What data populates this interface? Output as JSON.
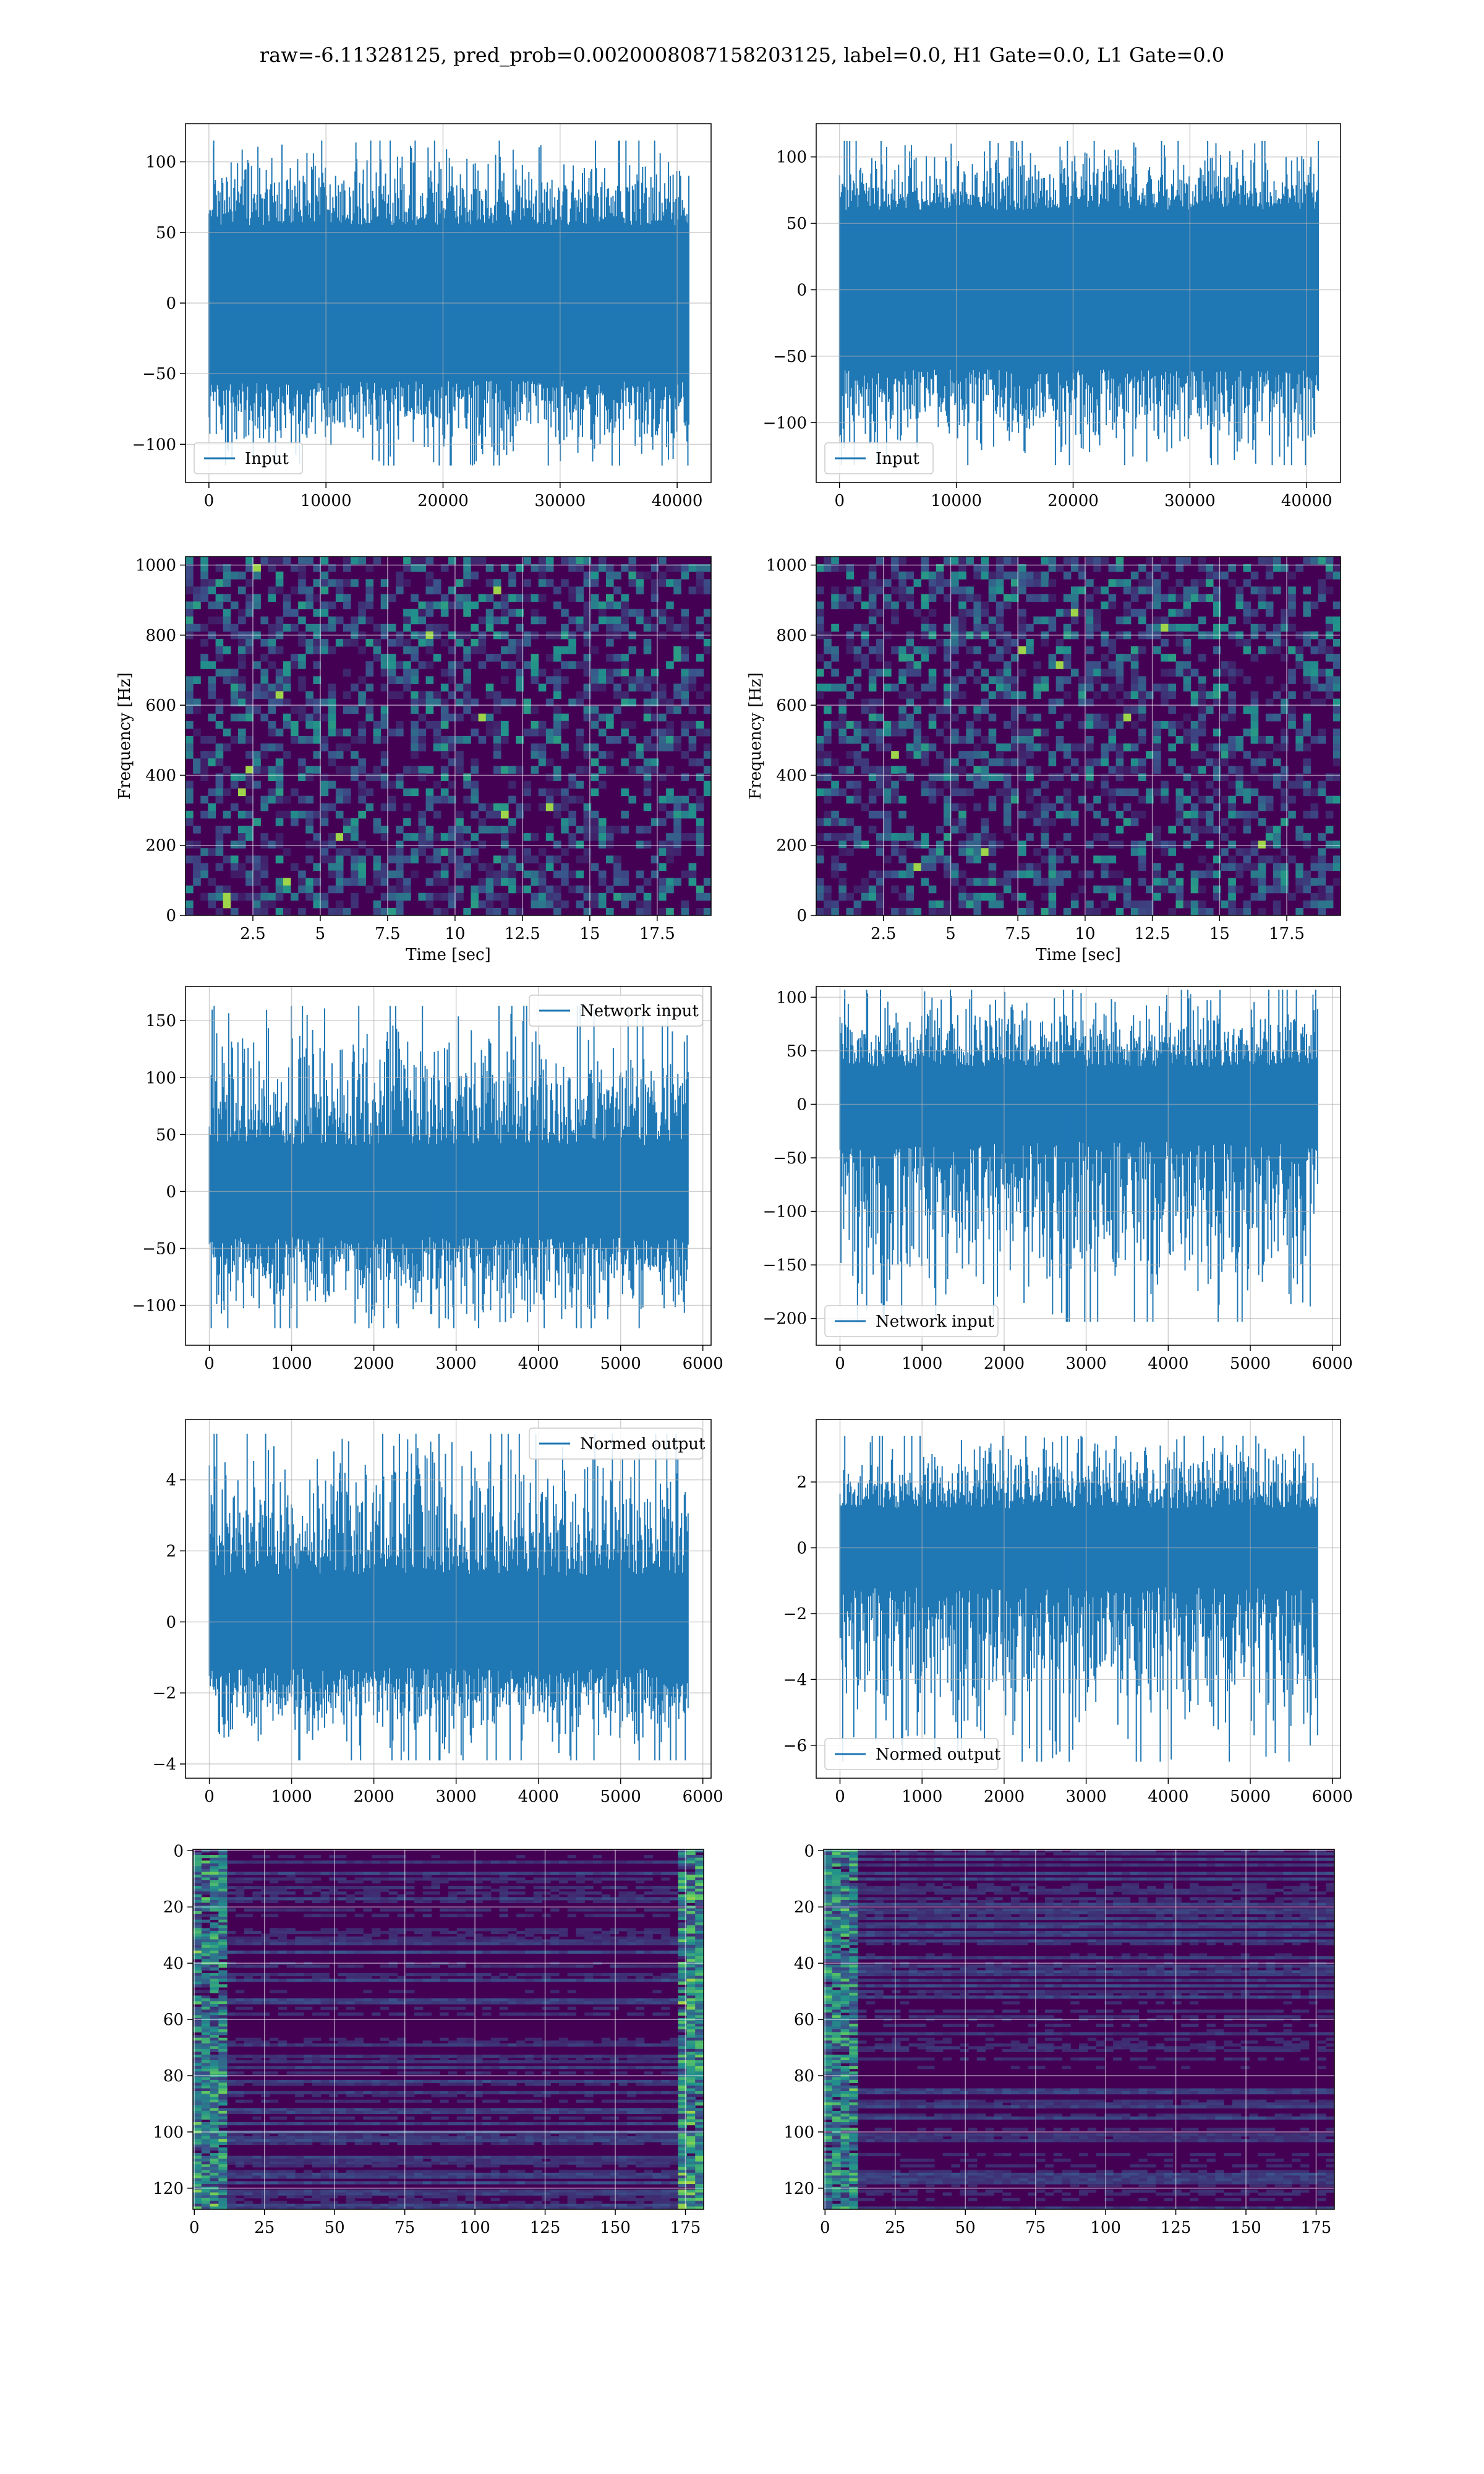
{
  "suptitle": "raw=-6.11328125, pred_prob=0.0020008087158203125, label=0.0, H1 Gate=0.0, L1 Gate=0.0",
  "colors": {
    "series": "#1f77b4",
    "grid": "#b0b0b0",
    "viridis_low": "#440154",
    "viridis_high": "#fde725"
  },
  "chart_data": [
    {
      "id": "r1c1",
      "type": "line",
      "legend": "Input",
      "legend_loc": "lower left",
      "grid": true,
      "xlim": [
        -2000,
        42900
      ],
      "ylim": [
        -127,
        127
      ],
      "xticks": [
        0,
        10000,
        20000,
        30000,
        40000
      ],
      "yticks": [
        -100,
        -50,
        0,
        50,
        100
      ],
      "x": [
        0,
        41000
      ],
      "band": [
        -55,
        55
      ],
      "peaks": [
        -115,
        115
      ]
    },
    {
      "id": "r1c2",
      "type": "line",
      "legend": "Input",
      "legend_loc": "lower left",
      "grid": true,
      "xlim": [
        -2000,
        42900
      ],
      "ylim": [
        -145,
        125
      ],
      "xticks": [
        0,
        10000,
        20000,
        30000,
        40000
      ],
      "yticks": [
        -100,
        -50,
        0,
        50,
        100
      ],
      "x": [
        0,
        41000
      ],
      "band": [
        -60,
        60
      ],
      "peaks": [
        -132,
        112
      ]
    },
    {
      "id": "r2c1",
      "type": "heatmap",
      "grid": true,
      "xlabel": "Time [sec]",
      "ylabel": "Frequency [Hz]",
      "xlim": [
        0,
        19.5
      ],
      "ylim": [
        0,
        1024
      ],
      "xticks": [
        2.5,
        5.0,
        7.5,
        10.0,
        12.5,
        15.0,
        17.5
      ],
      "yticks": [
        0,
        200,
        400,
        600,
        800,
        1000
      ]
    },
    {
      "id": "r2c2",
      "type": "heatmap",
      "grid": true,
      "xlabel": "Time [sec]",
      "ylabel": "Frequency [Hz]",
      "xlim": [
        0,
        19.5
      ],
      "ylim": [
        0,
        1024
      ],
      "xticks": [
        2.5,
        5.0,
        7.5,
        10.0,
        12.5,
        15.0,
        17.5
      ],
      "yticks": [
        0,
        200,
        400,
        600,
        800,
        1000
      ]
    },
    {
      "id": "r3c1",
      "type": "line",
      "legend": "Network input",
      "legend_loc": "upper right",
      "grid": true,
      "xlim": [
        -290,
        6100
      ],
      "ylim": [
        -135,
        180
      ],
      "xticks": [
        0,
        1000,
        2000,
        3000,
        4000,
        5000,
        6000
      ],
      "yticks": [
        -100,
        -50,
        0,
        50,
        100,
        150
      ],
      "x": [
        0,
        5820
      ],
      "band": [
        -40,
        40
      ],
      "peaks": [
        -120,
        163
      ]
    },
    {
      "id": "r3c2",
      "type": "line",
      "legend": "Network input",
      "legend_loc": "lower left",
      "grid": true,
      "xlim": [
        -290,
        6100
      ],
      "ylim": [
        -225,
        110
      ],
      "xticks": [
        0,
        1000,
        2000,
        3000,
        4000,
        5000,
        6000
      ],
      "yticks": [
        -200,
        -150,
        -100,
        -50,
        0,
        50,
        100
      ],
      "x": [
        0,
        5820
      ],
      "band": [
        -35,
        35
      ],
      "peaks": [
        -203,
        107
      ]
    },
    {
      "id": "r4c1",
      "type": "line",
      "legend": "Normed output",
      "legend_loc": "upper right",
      "grid": true,
      "xlim": [
        -290,
        6100
      ],
      "ylim": [
        -4.4,
        5.7
      ],
      "xticks": [
        0,
        1000,
        2000,
        3000,
        4000,
        5000,
        6000
      ],
      "yticks": [
        -4,
        -2,
        0,
        2,
        4
      ],
      "x": [
        0,
        5820
      ],
      "band": [
        -1.3,
        1.3
      ],
      "peaks": [
        -3.9,
        5.3
      ]
    },
    {
      "id": "r4c2",
      "type": "line",
      "legend": "Normed output",
      "legend_loc": "lower left",
      "grid": true,
      "xlim": [
        -290,
        6100
      ],
      "ylim": [
        -7.0,
        3.9
      ],
      "xticks": [
        0,
        1000,
        2000,
        3000,
        4000,
        5000,
        6000
      ],
      "yticks": [
        -6,
        -4,
        -2,
        0,
        2
      ],
      "x": [
        0,
        5820
      ],
      "band": [
        -1.2,
        1.2
      ],
      "peaks": [
        -6.5,
        3.4
      ]
    },
    {
      "id": "r5c1",
      "type": "heatmap",
      "grid": true,
      "image_origin": "upper",
      "xlim": [
        -0.5,
        181.5
      ],
      "ylim": [
        127.5,
        -0.5
      ],
      "xticks": [
        0,
        25,
        50,
        75,
        100,
        125,
        150,
        175
      ],
      "yticks": [
        0,
        20,
        40,
        60,
        80,
        100,
        120
      ]
    },
    {
      "id": "r5c2",
      "type": "heatmap",
      "grid": true,
      "image_origin": "upper",
      "xlim": [
        -0.5,
        181.5
      ],
      "ylim": [
        127.5,
        -0.5
      ],
      "xticks": [
        0,
        25,
        50,
        75,
        100,
        125,
        150,
        175
      ],
      "yticks": [
        0,
        20,
        40,
        60,
        80,
        100,
        120
      ]
    }
  ]
}
